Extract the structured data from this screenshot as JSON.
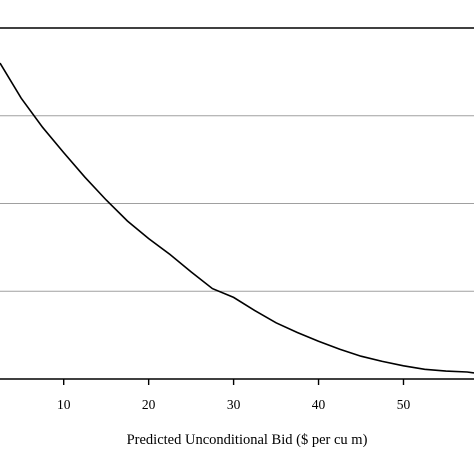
{
  "chart_data": {
    "type": "line",
    "xlabel": "Predicted Unconditional Bid ($ per cu m)",
    "ylabel": "",
    "title": "",
    "x_ticks": [
      10,
      20,
      30,
      40,
      50
    ],
    "xlim": [
      2.5,
      58.3
    ],
    "ylim": [
      0,
      4
    ],
    "grid": "horizontal",
    "legend": "none",
    "line_color": "#000000",
    "grid_color": "#a0a0a0",
    "series": [
      {
        "x": [
          2.5,
          5,
          7.5,
          10,
          12.5,
          15,
          17.5,
          20,
          22.5,
          25,
          27.5,
          30,
          32.5,
          35,
          37.5,
          40,
          42.5,
          45,
          47.5,
          50,
          52.5,
          55,
          57.5,
          58.3
        ],
        "y": [
          3.6,
          3.2,
          2.87,
          2.58,
          2.3,
          2.04,
          1.8,
          1.6,
          1.42,
          1.22,
          1.03,
          0.93,
          0.78,
          0.64,
          0.53,
          0.43,
          0.34,
          0.26,
          0.2,
          0.15,
          0.11,
          0.09,
          0.08,
          0.07
        ]
      }
    ]
  }
}
